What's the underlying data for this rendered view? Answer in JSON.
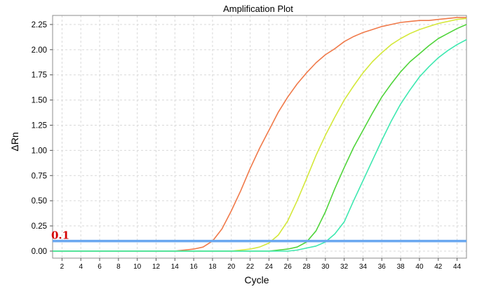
{
  "chart_data": {
    "type": "line",
    "title": "Amplification Plot",
    "xlabel": "Cycle",
    "ylabel": "ΔRn",
    "xlim": [
      1,
      45
    ],
    "ylim": [
      -0.07,
      2.34
    ],
    "x_ticks": [
      2,
      4,
      6,
      8,
      10,
      12,
      14,
      16,
      18,
      20,
      22,
      24,
      26,
      28,
      30,
      32,
      34,
      36,
      38,
      40,
      42,
      44
    ],
    "y_ticks": [
      "0.00",
      "0.25",
      "0.50",
      "0.75",
      "1.00",
      "1.25",
      "1.50",
      "1.75",
      "2.00",
      "2.25"
    ],
    "grid": true,
    "threshold": {
      "value": 0.1,
      "label": "0.1",
      "color": "#6aa8f0"
    },
    "series": [
      {
        "color": "#f07a4a",
        "x": [
          1,
          2,
          3,
          4,
          5,
          6,
          7,
          8,
          9,
          10,
          11,
          12,
          13,
          14,
          15,
          16,
          17,
          18,
          19,
          20,
          21,
          22,
          23,
          24,
          25,
          26,
          27,
          28,
          29,
          30,
          31,
          32,
          33,
          34,
          35,
          36,
          37,
          38,
          39,
          40,
          41,
          42,
          43,
          44,
          45
        ],
        "y": [
          0,
          0,
          0,
          0,
          0,
          0,
          0,
          0,
          0,
          0,
          0,
          0,
          0,
          0,
          0.01,
          0.02,
          0.04,
          0.1,
          0.22,
          0.4,
          0.6,
          0.82,
          1.02,
          1.2,
          1.38,
          1.53,
          1.66,
          1.77,
          1.87,
          1.95,
          2.01,
          2.08,
          2.13,
          2.17,
          2.2,
          2.23,
          2.25,
          2.27,
          2.28,
          2.29,
          2.29,
          2.3,
          2.31,
          2.32,
          2.32
        ]
      },
      {
        "color": "#d4e83a",
        "x": [
          1,
          2,
          3,
          4,
          5,
          6,
          7,
          8,
          9,
          10,
          11,
          12,
          13,
          14,
          15,
          16,
          17,
          18,
          19,
          20,
          21,
          22,
          23,
          24,
          25,
          26,
          27,
          28,
          29,
          30,
          31,
          32,
          33,
          34,
          35,
          36,
          37,
          38,
          39,
          40,
          41,
          42,
          43,
          44,
          45
        ],
        "y": [
          0,
          0,
          0,
          0,
          0,
          0,
          0,
          0,
          0,
          0,
          0,
          0,
          0,
          0,
          0,
          0,
          0,
          0,
          0,
          0,
          0.01,
          0.02,
          0.04,
          0.08,
          0.16,
          0.3,
          0.5,
          0.72,
          0.95,
          1.15,
          1.33,
          1.5,
          1.64,
          1.77,
          1.88,
          1.97,
          2.05,
          2.11,
          2.16,
          2.2,
          2.23,
          2.26,
          2.28,
          2.3,
          2.31
        ]
      },
      {
        "color": "#4fd43a",
        "x": [
          1,
          2,
          3,
          4,
          5,
          6,
          7,
          8,
          9,
          10,
          11,
          12,
          13,
          14,
          15,
          16,
          17,
          18,
          19,
          20,
          21,
          22,
          23,
          24,
          25,
          26,
          27,
          28,
          29,
          30,
          31,
          32,
          33,
          34,
          35,
          36,
          37,
          38,
          39,
          40,
          41,
          42,
          43,
          44,
          45
        ],
        "y": [
          0,
          0,
          0,
          0,
          0,
          0,
          0,
          0,
          0,
          0,
          0,
          0,
          0,
          0,
          0,
          0,
          0,
          0,
          0,
          0,
          0,
          0,
          0,
          0,
          0.01,
          0.02,
          0.04,
          0.09,
          0.2,
          0.39,
          0.62,
          0.83,
          1.03,
          1.2,
          1.37,
          1.53,
          1.66,
          1.78,
          1.88,
          1.96,
          2.04,
          2.11,
          2.16,
          2.21,
          2.25
        ]
      },
      {
        "color": "#3ee8b0",
        "x": [
          1,
          2,
          3,
          4,
          5,
          6,
          7,
          8,
          9,
          10,
          11,
          12,
          13,
          14,
          15,
          16,
          17,
          18,
          19,
          20,
          21,
          22,
          23,
          24,
          25,
          26,
          27,
          28,
          29,
          30,
          31,
          32,
          33,
          34,
          35,
          36,
          37,
          38,
          39,
          40,
          41,
          42,
          43,
          44,
          45
        ],
        "y": [
          0,
          0,
          0,
          0,
          0,
          0,
          0,
          0,
          0,
          0,
          0,
          0,
          0,
          0,
          0,
          0,
          0,
          0,
          0,
          0,
          0,
          0,
          0,
          0,
          0,
          0,
          0.01,
          0.03,
          0.05,
          0.09,
          0.17,
          0.29,
          0.5,
          0.7,
          0.9,
          1.1,
          1.29,
          1.46,
          1.6,
          1.73,
          1.83,
          1.92,
          1.99,
          2.05,
          2.1
        ]
      }
    ]
  }
}
